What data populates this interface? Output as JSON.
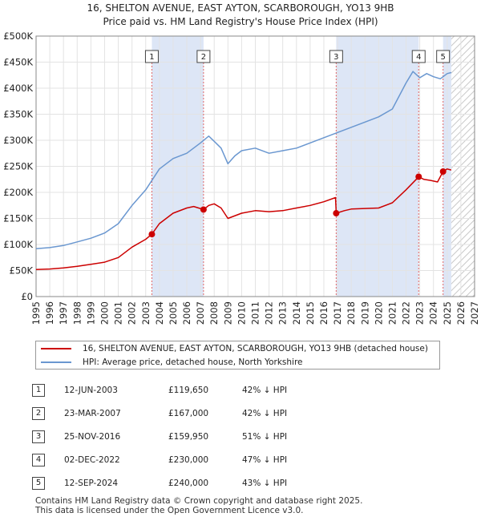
{
  "chart_data": {
    "type": "line",
    "title": "16, SHELTON AVENUE, EAST AYTON, SCARBOROUGH, YO13 9HB",
    "subtitle": "Price paid vs. HM Land Registry's House Price Index (HPI)",
    "xlim": [
      1995,
      2027
    ],
    "ylim": [
      0,
      500000
    ],
    "x_ticks": [
      "1995",
      "1996",
      "1997",
      "1998",
      "1999",
      "2000",
      "2001",
      "2002",
      "2003",
      "2004",
      "2005",
      "2006",
      "2007",
      "2008",
      "2009",
      "2010",
      "2011",
      "2012",
      "2013",
      "2014",
      "2015",
      "2016",
      "2017",
      "2018",
      "2019",
      "2020",
      "2021",
      "2022",
      "2023",
      "2024",
      "2025",
      "2026",
      "2027"
    ],
    "y_ticks": [
      {
        "value": 0,
        "label": "£0"
      },
      {
        "value": 50000,
        "label": "£50K"
      },
      {
        "value": 100000,
        "label": "£100K"
      },
      {
        "value": 150000,
        "label": "£150K"
      },
      {
        "value": 200000,
        "label": "£200K"
      },
      {
        "value": 250000,
        "label": "£250K"
      },
      {
        "value": 300000,
        "label": "£300K"
      },
      {
        "value": 350000,
        "label": "£350K"
      },
      {
        "value": 400000,
        "label": "£400K"
      },
      {
        "value": 450000,
        "label": "£450K"
      },
      {
        "value": 500000,
        "label": "£500K"
      }
    ],
    "grid": true,
    "shaded_periods": [
      [
        2003.45,
        2007.22
      ],
      [
        2016.9,
        2022.92
      ],
      [
        2024.7,
        2025.3
      ]
    ],
    "projection_start": 2025.3,
    "series": [
      {
        "name": "16, SHELTON AVENUE, EAST AYTON, SCARBOROUGH, YO13 9HB (detached house)",
        "color": "#cc0000",
        "x": [
          1995,
          1996,
          1997,
          1998,
          1999,
          2000,
          2001,
          2002,
          2003,
          2003.45,
          2004,
          2005,
          2006,
          2006.5,
          2007.22,
          2007.6,
          2008,
          2008.5,
          2009,
          2010,
          2011,
          2012,
          2013,
          2014,
          2015,
          2016,
          2016.85,
          2016.9,
          2017.5,
          2018,
          2019,
          2020,
          2021,
          2022,
          2022.85,
          2022.92,
          2023.3,
          2023.8,
          2024.3,
          2024.7,
          2025,
          2025.3
        ],
        "y": [
          52000,
          53000,
          55000,
          58000,
          62000,
          66000,
          75000,
          95000,
          110000,
          119650,
          140000,
          160000,
          170000,
          173000,
          167000,
          175000,
          178000,
          170000,
          150000,
          160000,
          165000,
          163000,
          165000,
          170000,
          175000,
          182000,
          190000,
          159950,
          165000,
          168000,
          169000,
          170000,
          180000,
          205000,
          228000,
          230000,
          225000,
          223000,
          220000,
          240000,
          245000,
          243000
        ]
      },
      {
        "name": "HPI: Average price, detached house, North Yorkshire",
        "color": "#6a97d0",
        "x": [
          1995,
          1996,
          1997,
          1998,
          1999,
          2000,
          2001,
          2002,
          2003,
          2004,
          2005,
          2006,
          2007,
          2007.6,
          2008,
          2008.5,
          2009,
          2009.5,
          2010,
          2011,
          2012,
          2013,
          2014,
          2015,
          2016,
          2017,
          2018,
          2019,
          2020,
          2021,
          2022,
          2022.5,
          2023,
          2023.5,
          2024,
          2024.5,
          2025,
          2025.3
        ],
        "y": [
          92000,
          94000,
          98000,
          105000,
          112000,
          122000,
          140000,
          175000,
          205000,
          245000,
          265000,
          275000,
          295000,
          308000,
          298000,
          285000,
          255000,
          270000,
          280000,
          285000,
          275000,
          280000,
          285000,
          295000,
          305000,
          315000,
          325000,
          335000,
          345000,
          360000,
          410000,
          432000,
          420000,
          428000,
          422000,
          418000,
          428000,
          430000
        ]
      }
    ],
    "sale_markers": [
      {
        "label": "1",
        "x": 2003.45,
        "y": 119650
      },
      {
        "label": "2",
        "x": 2007.22,
        "y": 167000
      },
      {
        "label": "3",
        "x": 2016.9,
        "y": 159950
      },
      {
        "label": "4",
        "x": 2022.92,
        "y": 230000
      },
      {
        "label": "5",
        "x": 2024.7,
        "y": 240000
      }
    ]
  },
  "legend": {
    "property_label": "16, SHELTON AVENUE, EAST AYTON, SCARBOROUGH, YO13 9HB (detached house)",
    "hpi_label": "HPI: Average price, detached house, North Yorkshire",
    "property_color": "#cc0000",
    "hpi_color": "#6a97d0"
  },
  "sales": [
    {
      "num": "1",
      "date": "12-JUN-2003",
      "price": "£119,650",
      "diff": "42% ↓ HPI"
    },
    {
      "num": "2",
      "date": "23-MAR-2007",
      "price": "£167,000",
      "diff": "42% ↓ HPI"
    },
    {
      "num": "3",
      "date": "25-NOV-2016",
      "price": "£159,950",
      "diff": "51% ↓ HPI"
    },
    {
      "num": "4",
      "date": "02-DEC-2022",
      "price": "£230,000",
      "diff": "47% ↓ HPI"
    },
    {
      "num": "5",
      "date": "12-SEP-2024",
      "price": "£240,000",
      "diff": "43% ↓ HPI"
    }
  ],
  "footer": {
    "line1": "Contains HM Land Registry data © Crown copyright and database right 2025.",
    "line2": "This data is licensed under the Open Government Licence v3.0."
  }
}
